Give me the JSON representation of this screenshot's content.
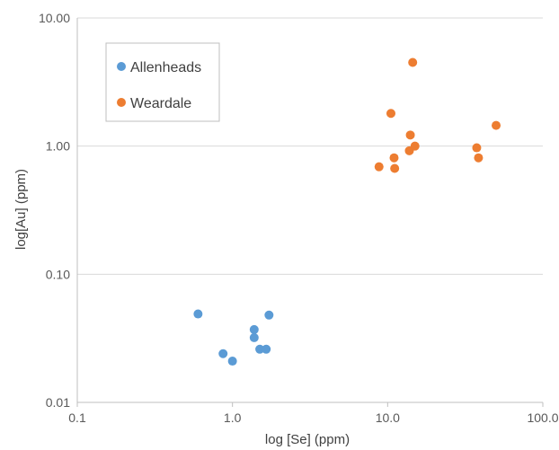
{
  "chart_data": {
    "type": "scatter",
    "title": "",
    "xlabel": "log [Se] (ppm)",
    "ylabel": "log[Au] (ppm)",
    "x_scale": "log",
    "y_scale": "log",
    "xlim": [
      0.1,
      100
    ],
    "ylim": [
      0.01,
      10
    ],
    "x_ticks": [
      0.1,
      1,
      10,
      100
    ],
    "y_ticks": [
      0.01,
      0.1,
      1,
      10
    ],
    "x_tick_labels": [
      "0.1",
      "1.0",
      "10.0",
      "100.0"
    ],
    "y_tick_labels": [
      "0.01",
      "0.10",
      "1.00",
      "10.00"
    ],
    "grid": "horizontal",
    "legend_position": "top-left",
    "series": [
      {
        "name": "Allenheads",
        "color": "#5b9bd5",
        "points": [
          {
            "x": 0.6,
            "y": 0.049
          },
          {
            "x": 0.87,
            "y": 0.024
          },
          {
            "x": 1.0,
            "y": 0.021
          },
          {
            "x": 1.38,
            "y": 0.037
          },
          {
            "x": 1.38,
            "y": 0.032
          },
          {
            "x": 1.5,
            "y": 0.026
          },
          {
            "x": 1.65,
            "y": 0.026
          },
          {
            "x": 1.72,
            "y": 0.048
          }
        ]
      },
      {
        "name": "Weardale",
        "color": "#ed7d31",
        "points": [
          {
            "x": 8.8,
            "y": 0.69
          },
          {
            "x": 10.5,
            "y": 1.8
          },
          {
            "x": 11.0,
            "y": 0.81
          },
          {
            "x": 11.1,
            "y": 0.67
          },
          {
            "x": 13.8,
            "y": 0.92
          },
          {
            "x": 14.0,
            "y": 1.22
          },
          {
            "x": 14.5,
            "y": 4.5
          },
          {
            "x": 15.0,
            "y": 1.0
          },
          {
            "x": 37.5,
            "y": 0.97
          },
          {
            "x": 38.5,
            "y": 0.81
          },
          {
            "x": 50.0,
            "y": 1.45
          }
        ]
      }
    ]
  }
}
